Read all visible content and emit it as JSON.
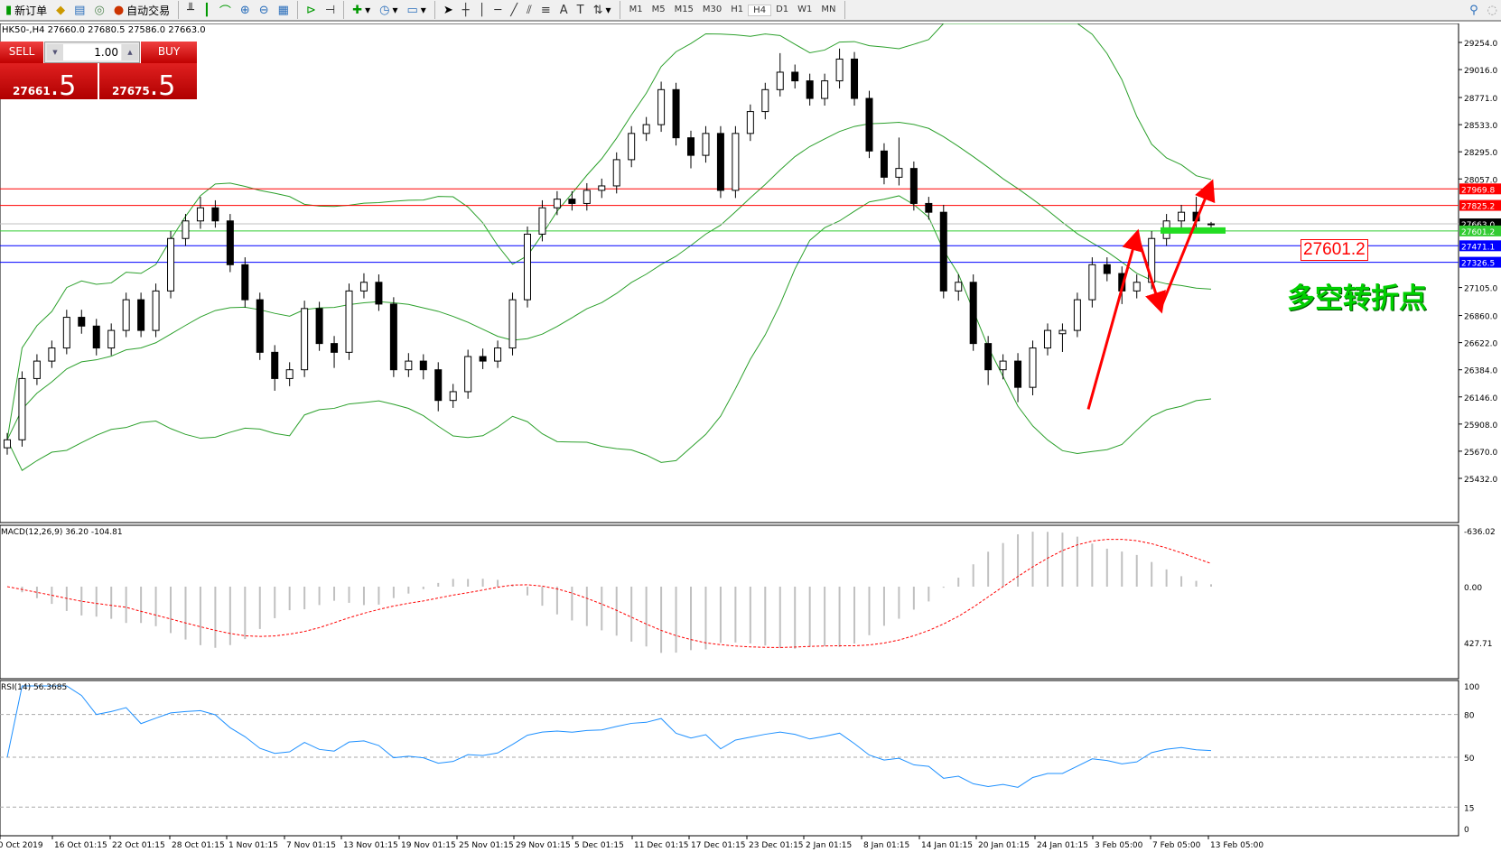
{
  "toolbar": {
    "new_order": "新订单",
    "auto_trade": "自动交易",
    "timeframes": [
      "M1",
      "M5",
      "M15",
      "M30",
      "H1",
      "H4",
      "D1",
      "W1",
      "MN"
    ],
    "active_timeframe": "H4",
    "icons": [
      "new-order-icon",
      "navigator-icon",
      "terminal-icon",
      "signals-icon",
      "auto-trade-icon",
      "bar-chart-icon",
      "candlestick-icon",
      "line-chart-icon",
      "zoom-in-icon",
      "zoom-out-icon",
      "tile-windows-icon",
      "autoscroll-icon",
      "chart-shift-icon",
      "add-indicator-icon",
      "periods-icon",
      "templates-icon",
      "cursor-icon",
      "crosshair-icon",
      "vertical-line-icon",
      "horizontal-line-icon",
      "trendline-icon",
      "equidistant-channel-icon",
      "fibonacci-icon",
      "text-icon",
      "text-label-icon",
      "arrows-icon",
      "search-icon",
      "community-icon"
    ]
  },
  "chart_title": "HK50-,H4  27660.0 27680.5 27586.0 27663.0",
  "trade_panel": {
    "sell_label": "SELL",
    "buy_label": "BUY",
    "lot": "1.00",
    "sell_price_main": "27661",
    "sell_price_frac": ".5",
    "buy_price_main": "27675",
    "buy_price_frac": ".5"
  },
  "annotation": {
    "price_box": "27601.2",
    "text": "多空转折点"
  },
  "colors": {
    "bull": "#ffffff",
    "bear": "#000000",
    "bands": "#2ca02c",
    "macd_hist": "#c0c0c0",
    "macd_signal": "#ff0000",
    "rsi": "#1e90ff",
    "resistance": "#ff0000",
    "support": "#0000ff",
    "pivot": "#33cc33",
    "arrow": "#ff0000"
  },
  "chart_data": {
    "type": "candlestick",
    "symbol": "HK50-",
    "timeframe": "H4",
    "ylim": [
      25432,
      29254
    ],
    "y_ticks": [
      "29254.0",
      "29016.0",
      "28771.0",
      "28533.0",
      "28295.0",
      "28057.0",
      "27105.0",
      "26860.0",
      "26622.0",
      "26384.0",
      "26146.0",
      "25908.0",
      "25670.0",
      "25432.0"
    ],
    "x_ticks": [
      "10 Oct 2019",
      "16 Oct 01:15",
      "22 Oct 01:15",
      "28 Oct 01:15",
      "1 Nov 01:15",
      "7 Nov 01:15",
      "13 Nov 01:15",
      "19 Nov 01:15",
      "25 Nov 01:15",
      "29 Nov 01:15",
      "5 Dec 01:15",
      "11 Dec 01:15",
      "17 Dec 01:15",
      "23 Dec 01:15",
      "2 Jan 01:15",
      "8 Jan 01:15",
      "14 Jan 01:15",
      "20 Jan 01:15",
      "24 Jan 01:15",
      "3 Feb 05:00",
      "7 Feb 05:00",
      "13 Feb 05:00"
    ],
    "candles": [
      [
        25700,
        25830,
        25640,
        25770
      ],
      [
        25770,
        26370,
        25710,
        26307
      ],
      [
        26307,
        26520,
        26250,
        26460
      ],
      [
        26460,
        26640,
        26400,
        26575
      ],
      [
        26575,
        26910,
        26520,
        26844
      ],
      [
        26844,
        26910,
        26700,
        26767
      ],
      [
        26767,
        26830,
        26510,
        26575
      ],
      [
        26575,
        26790,
        26510,
        26729
      ],
      [
        26729,
        27060,
        26670,
        26998
      ],
      [
        26998,
        27060,
        26670,
        26729
      ],
      [
        26729,
        27140,
        26670,
        27075
      ],
      [
        27075,
        27600,
        27010,
        27535
      ],
      [
        27535,
        27750,
        27470,
        27689
      ],
      [
        27689,
        27900,
        27620,
        27804
      ],
      [
        27804,
        27870,
        27630,
        27689
      ],
      [
        27689,
        27750,
        27240,
        27305
      ],
      [
        27305,
        27370,
        26930,
        26998
      ],
      [
        26998,
        27060,
        26470,
        26537
      ],
      [
        26537,
        26600,
        26200,
        26307
      ],
      [
        26307,
        26450,
        26240,
        26384
      ],
      [
        26384,
        26990,
        26320,
        26921
      ],
      [
        26921,
        26980,
        26550,
        26614
      ],
      [
        26614,
        26680,
        26400,
        26537
      ],
      [
        26537,
        27140,
        26470,
        27075
      ],
      [
        27075,
        27230,
        27010,
        27151
      ],
      [
        27151,
        27220,
        26900,
        26960
      ],
      [
        26960,
        27020,
        26320,
        26384
      ],
      [
        26384,
        26530,
        26320,
        26460
      ],
      [
        26460,
        26520,
        26300,
        26384
      ],
      [
        26384,
        26450,
        26020,
        26115
      ],
      [
        26115,
        26260,
        26050,
        26192
      ],
      [
        26192,
        26560,
        26130,
        26500
      ],
      [
        26500,
        26570,
        26390,
        26460
      ],
      [
        26460,
        26640,
        26400,
        26575
      ],
      [
        26575,
        27060,
        26510,
        26998
      ],
      [
        26998,
        27640,
        26930,
        27573
      ],
      [
        27573,
        27870,
        27510,
        27804
      ],
      [
        27804,
        27950,
        27740,
        27880
      ],
      [
        27880,
        27950,
        27780,
        27842
      ],
      [
        27842,
        28020,
        27780,
        27957
      ],
      [
        27957,
        28060,
        27890,
        27996
      ],
      [
        27996,
        28290,
        27930,
        28226
      ],
      [
        28226,
        28520,
        28160,
        28456
      ],
      [
        28456,
        28600,
        28390,
        28533
      ],
      [
        28533,
        28910,
        28470,
        28840
      ],
      [
        28840,
        28900,
        28350,
        28418
      ],
      [
        28418,
        28480,
        28150,
        28264
      ],
      [
        28264,
        28520,
        28200,
        28456
      ],
      [
        28456,
        28520,
        27890,
        27957
      ],
      [
        27957,
        28520,
        27890,
        28456
      ],
      [
        28456,
        28710,
        28390,
        28648
      ],
      [
        28648,
        28900,
        28580,
        28840
      ],
      [
        28840,
        29160,
        28780,
        28993
      ],
      [
        28993,
        29060,
        28850,
        28917
      ],
      [
        28917,
        28980,
        28700,
        28763
      ],
      [
        28763,
        28980,
        28700,
        28917
      ],
      [
        28917,
        29200,
        28850,
        29108
      ],
      [
        29108,
        29170,
        28700,
        28763
      ],
      [
        28763,
        28830,
        28240,
        28302
      ],
      [
        28302,
        28370,
        28010,
        28072
      ],
      [
        28072,
        28420,
        28000,
        28149
      ],
      [
        28149,
        28210,
        27780,
        27842
      ],
      [
        27842,
        27900,
        27700,
        27765
      ],
      [
        27765,
        27830,
        27010,
        27075
      ],
      [
        27075,
        27220,
        26990,
        27151
      ],
      [
        27151,
        27220,
        26550,
        26614
      ],
      [
        26614,
        26680,
        26250,
        26384
      ],
      [
        26384,
        26520,
        26300,
        26460
      ],
      [
        26460,
        26530,
        26100,
        26230
      ],
      [
        26230,
        26640,
        26160,
        26575
      ],
      [
        26575,
        26790,
        26510,
        26729
      ],
      [
        26700,
        26790,
        26540,
        26729
      ],
      [
        26729,
        27060,
        26670,
        26998
      ],
      [
        26998,
        27370,
        26930,
        27305
      ],
      [
        27305,
        27370,
        27160,
        27228
      ],
      [
        27228,
        27290,
        26960,
        27075
      ],
      [
        27075,
        27220,
        27010,
        27151
      ],
      [
        27151,
        27600,
        27090,
        27535
      ],
      [
        27535,
        27750,
        27470,
        27689
      ],
      [
        27689,
        27830,
        27630,
        27765
      ],
      [
        27765,
        27900,
        27620,
        27689
      ],
      [
        27660,
        27680.5,
        27586,
        27663
      ]
    ],
    "indicators": {
      "bollinger": {
        "period": 20,
        "deviation": 2
      },
      "macd": {
        "label": "MACD(12,26,9) 36.20 -104.81",
        "ylim": [
          -636.02,
          427.71
        ],
        "y_ticks": [
          "427.71",
          "0.00",
          "-636.02"
        ]
      },
      "rsi": {
        "label": "RSI(14) 56.3685",
        "ylim": [
          0,
          100
        ],
        "levels": [
          80,
          50,
          15
        ],
        "y_ticks": [
          "100",
          "80",
          "50",
          "15",
          "0"
        ]
      }
    },
    "hlines": [
      {
        "price": 27969.8,
        "label": "27969.8",
        "color": "#ff0000"
      },
      {
        "price": 27825.2,
        "label": "27825.2",
        "color": "#ff0000"
      },
      {
        "price": 27663.0,
        "label": "27663.0",
        "color": "#000000",
        "line": "#c0c0c0"
      },
      {
        "price": 27601.2,
        "label": "27601.2",
        "color": "#33cc33"
      },
      {
        "price": 27471.1,
        "label": "27471.1",
        "color": "#0000ff"
      },
      {
        "price": 27326.5,
        "label": "27326.5",
        "color": "#0000ff"
      }
    ],
    "arrows": [
      [
        26038,
        27573
      ],
      [
        27573,
        26921
      ],
      [
        26921,
        28012
      ]
    ]
  }
}
